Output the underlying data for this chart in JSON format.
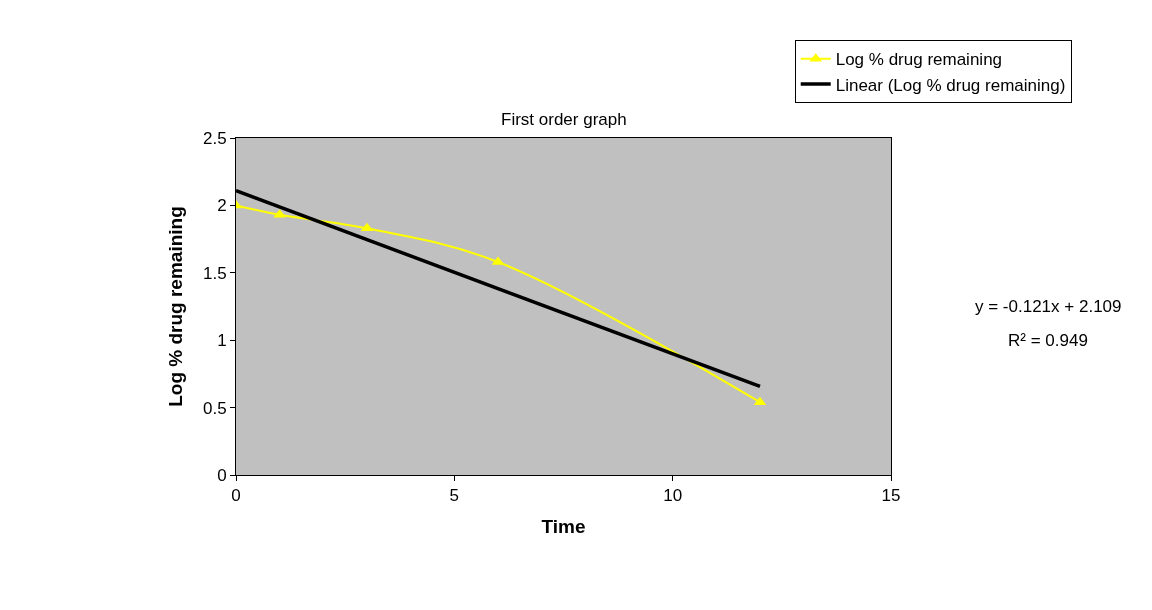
{
  "chart_data": {
    "type": "line",
    "title": "First order graph",
    "xlabel": "Time",
    "ylabel": "Log % drug remaining",
    "xlim": [
      0,
      15
    ],
    "xticks": [
      0,
      5,
      10,
      15
    ],
    "ylim": [
      0,
      2.5
    ],
    "yticks": [
      0,
      0.5,
      1,
      1.5,
      2,
      2.5
    ],
    "grid": false,
    "legend": "top right",
    "series": [
      {
        "name": "Log % drug remaining",
        "color": "#ffff00",
        "x": [
          0,
          1,
          3,
          6,
          12
        ],
        "values": [
          2.0,
          1.93,
          1.83,
          1.58,
          0.54
        ],
        "marker": "triangle"
      },
      {
        "name": "Linear (Log % drug remaining)",
        "color": "#000000",
        "x": [
          0,
          12
        ],
        "values": [
          2.109,
          0.657
        ],
        "marker": "none"
      }
    ],
    "annotations": [
      "y = -0.121x + 2.109",
      "R² = 0.949"
    ]
  }
}
